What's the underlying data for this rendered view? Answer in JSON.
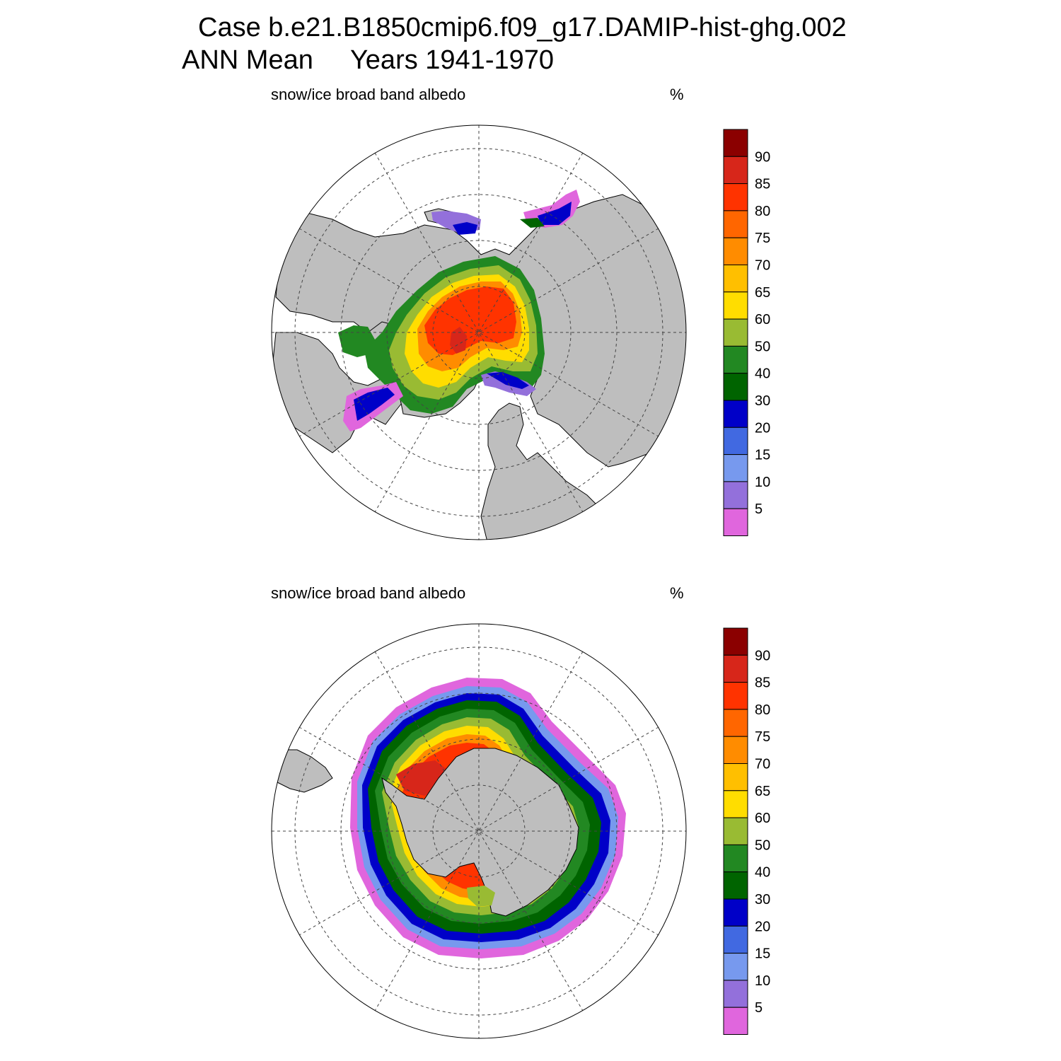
{
  "header": {
    "case_title": "Case b.e21.B1850cmip6.f09_g17.DAMIP-hist-ghg.002",
    "period_title": "ANN Mean     Years 1941-1970"
  },
  "panels": [
    {
      "name": "north",
      "variable": "snow/ice broad band albedo",
      "units": "%"
    },
    {
      "name": "south",
      "variable": "snow/ice broad band albedo",
      "units": "%"
    }
  ],
  "colorbar": {
    "labels": [
      "90",
      "85",
      "80",
      "75",
      "70",
      "65",
      "60",
      "50",
      "40",
      "30",
      "20",
      "15",
      "10",
      "5"
    ],
    "colors": [
      "#8b0000",
      "#d7261a",
      "#ff3300",
      "#ff6600",
      "#ff8c00",
      "#ffbf00",
      "#ffdd00",
      "#99bb33",
      "#228822",
      "#006400",
      "#0000c8",
      "#4169e1",
      "#7799ee",
      "#9370db",
      "#e066dd"
    ]
  },
  "style": {
    "land": "#bebebe",
    "ocean": "#ffffff",
    "grid": "dashed"
  }
}
